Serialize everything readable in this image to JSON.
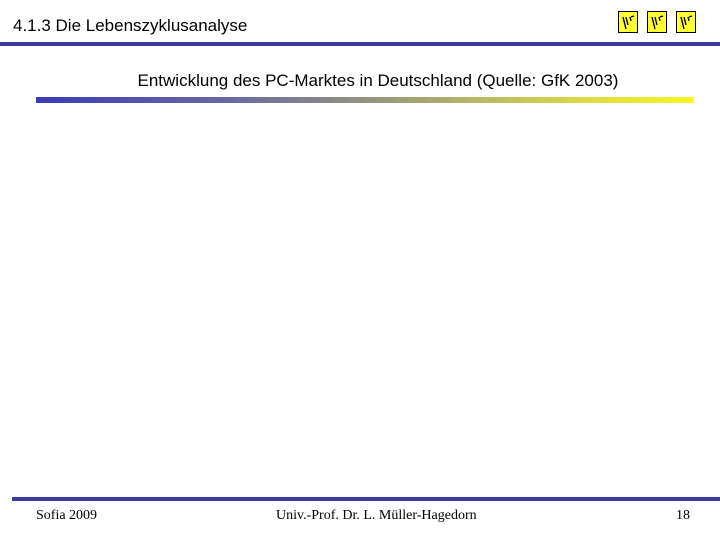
{
  "slide": {
    "title": "4.1.3 Die Lebenszyklusanalyse",
    "subtitle": "Entwicklung des PC-Marktes in Deutschland (Quelle: GfK 2003)",
    "logos": [
      {
        "icon": "university-logo-icon",
        "color": "#ffff33"
      },
      {
        "icon": "university-logo-icon",
        "color": "#ffff33"
      },
      {
        "icon": "university-logo-icon",
        "color": "#ffff33"
      }
    ],
    "colors": {
      "rule": "#3b3b9a",
      "gradient_start": "#3b3bb8",
      "gradient_end": "#f5f520"
    }
  },
  "footer": {
    "left": "Sofia 2009",
    "center": "Univ.-Prof. Dr. L. Müller-Hagedorn",
    "page_number": "18"
  }
}
